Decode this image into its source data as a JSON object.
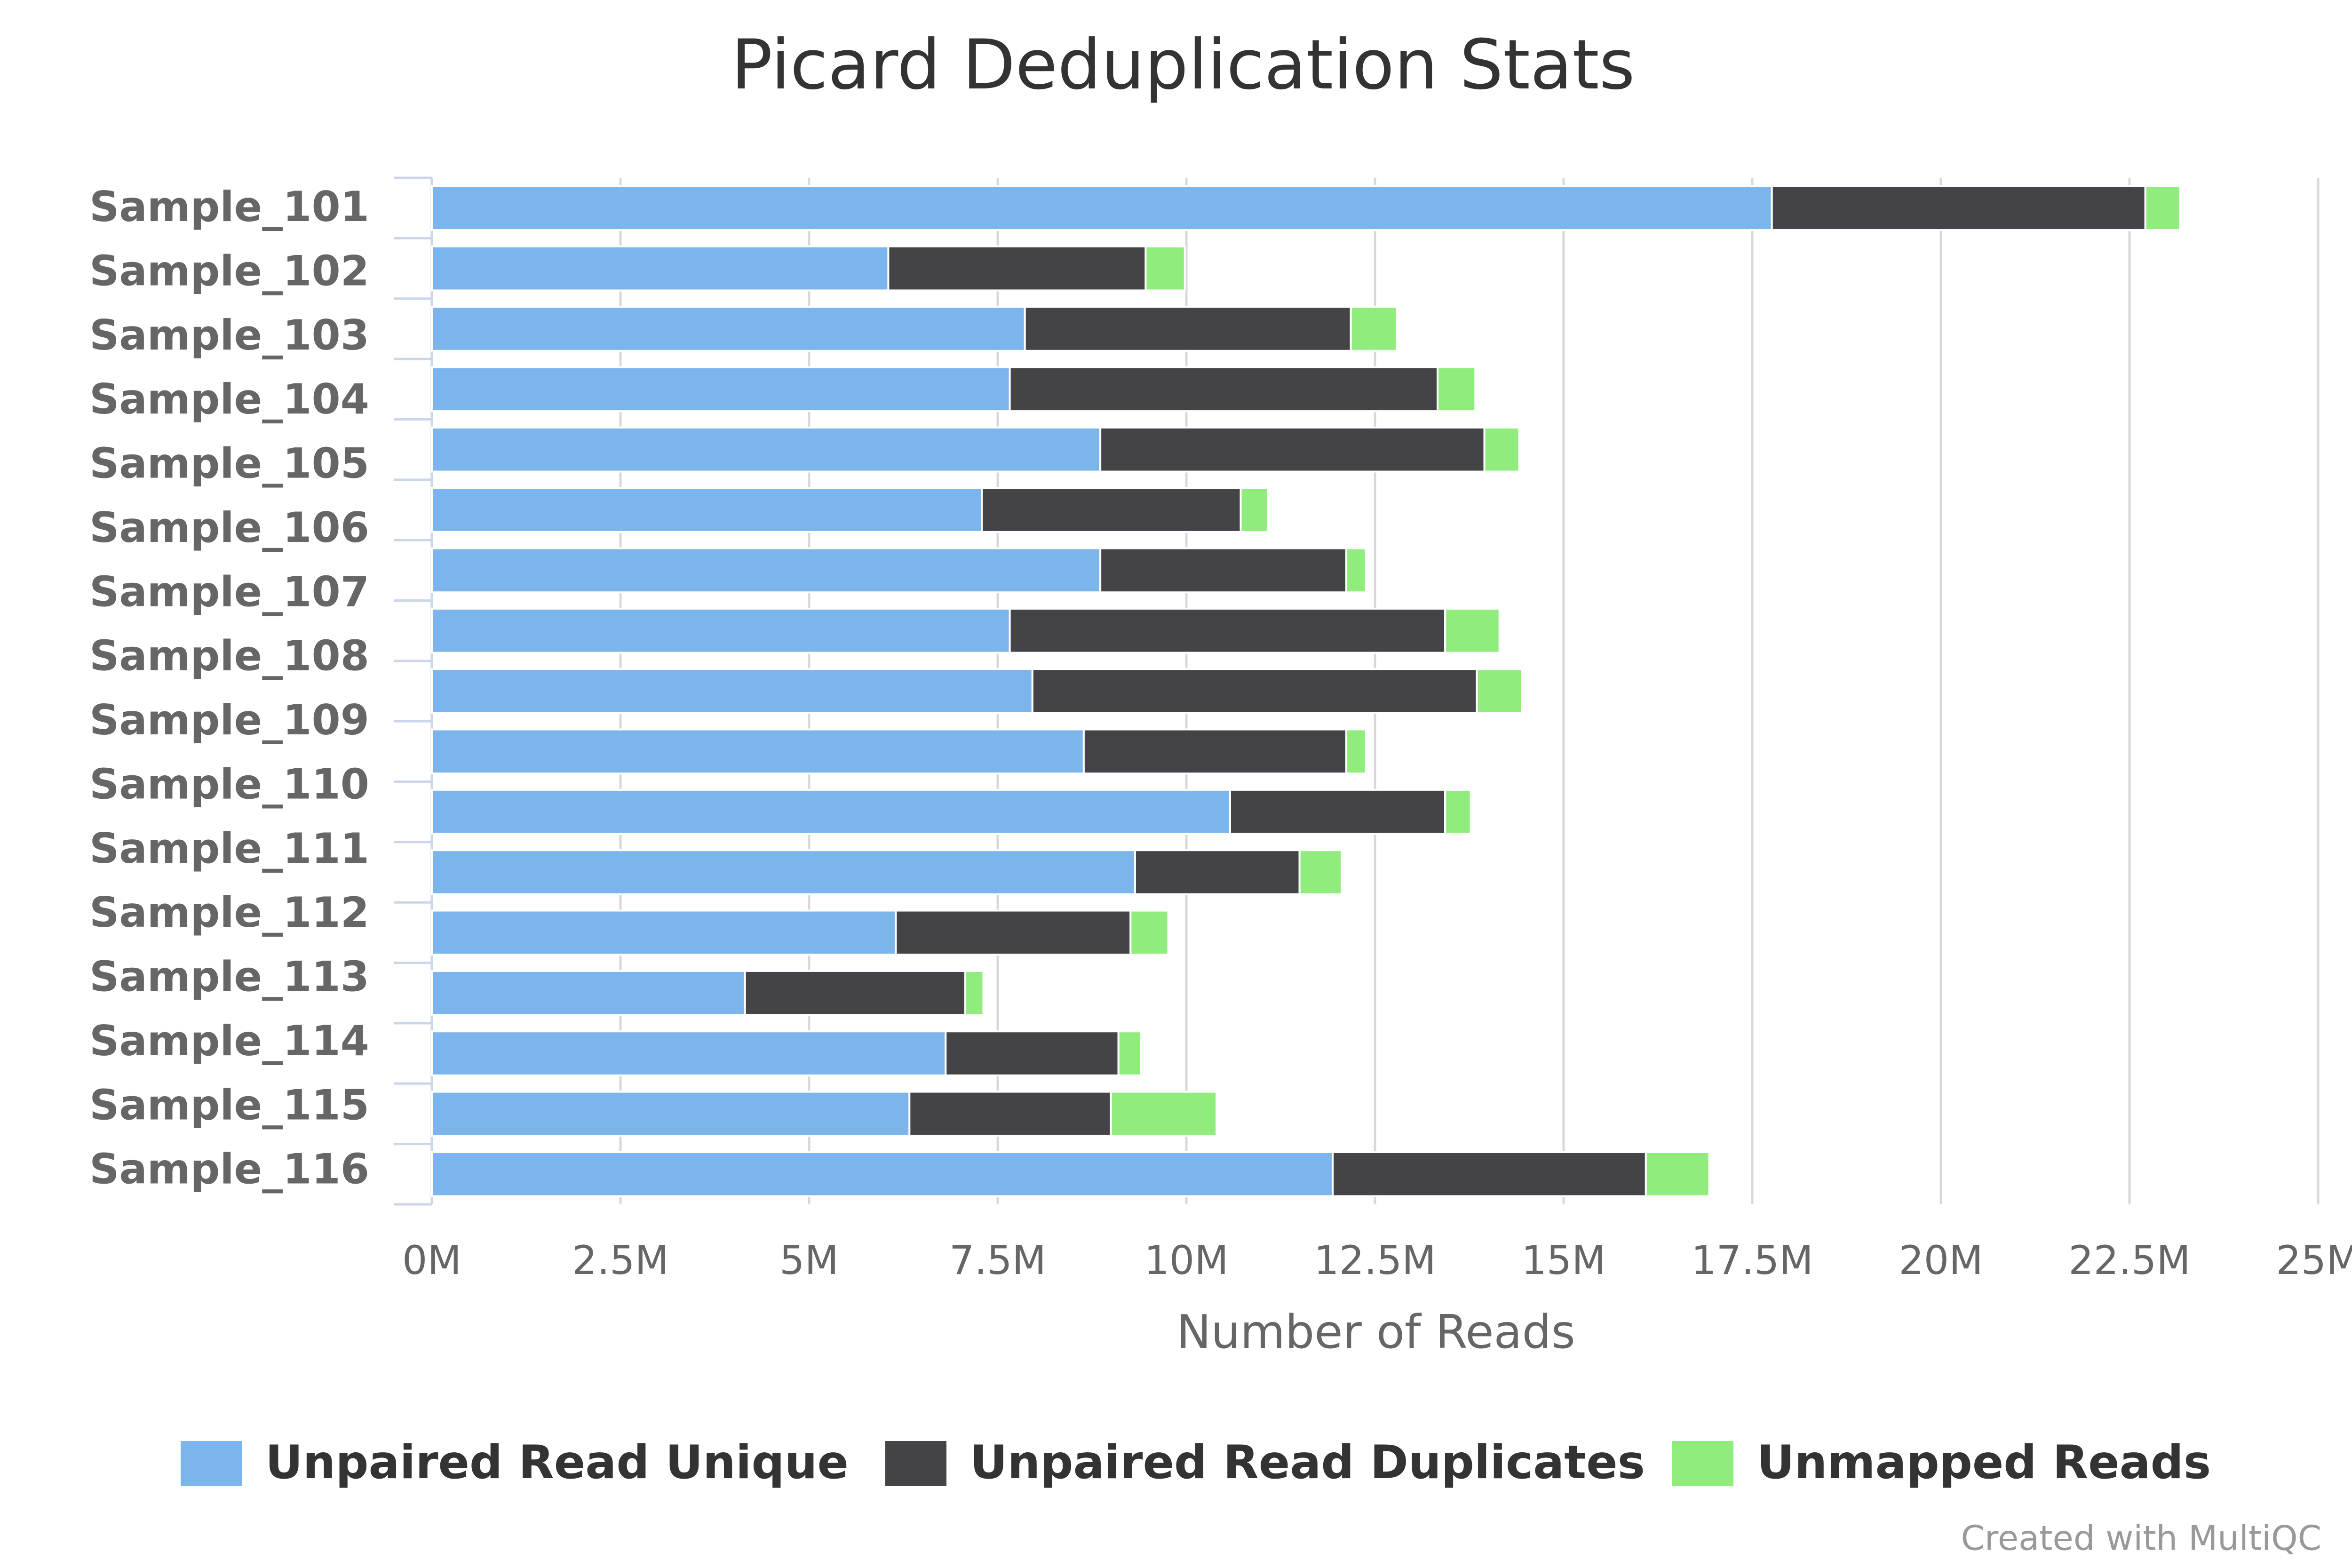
{
  "chart_data": {
    "type": "stacked_bar_horizontal",
    "title": "Picard Deduplication Stats",
    "categories": [
      "Sample_101",
      "Sample_102",
      "Sample_103",
      "Sample_104",
      "Sample_105",
      "Sample_106",
      "Sample_107",
      "Sample_108",
      "Sample_109",
      "Sample_110",
      "Sample_111",
      "Sample_112",
      "Sample_113",
      "Sample_114",
      "Sample_115",
      "Sample_116",
      null
    ],
    "series": [
      {
        "name": "Unpaired Read Unique",
        "color": "#7cb5ec",
        "values": [
          17760000,
          6050000,
          7860000,
          7660000,
          8860000,
          7290000,
          8860000,
          7660000,
          7960000,
          8640000,
          10580000,
          9320000,
          6150000,
          4150000,
          6810000,
          6330000,
          11940000
        ]
      },
      {
        "name": "Unpaired Read Duplicates",
        "color": "#434348",
        "values": [
          4950000,
          3410000,
          4320000,
          5670000,
          5090000,
          3430000,
          3260000,
          5770000,
          5890000,
          3480000,
          2850000,
          2180000,
          3110000,
          2920000,
          2290000,
          2670000,
          4150000
        ]
      },
      {
        "name": "Unmapped Reads",
        "color": "#90ed7d",
        "values": [
          460000,
          520000,
          610000,
          500000,
          460000,
          360000,
          260000,
          720000,
          600000,
          260000,
          340000,
          560000,
          500000,
          240000,
          300000,
          1400000,
          840000
        ]
      }
    ],
    "xlabel": "Number of Reads",
    "xlim": [
      0,
      25000000
    ],
    "xticks": [
      {
        "value": 0,
        "label": "0M"
      },
      {
        "value": 2500000,
        "label": "2.5M"
      },
      {
        "value": 5000000,
        "label": "5M"
      },
      {
        "value": 7500000,
        "label": "7.5M"
      },
      {
        "value": 10000000,
        "label": "10M"
      },
      {
        "value": 12500000,
        "label": "12.5M"
      },
      {
        "value": 15000000,
        "label": "15M"
      },
      {
        "value": 17500000,
        "label": "17.5M"
      },
      {
        "value": 20000000,
        "label": "20M"
      },
      {
        "value": 22500000,
        "label": "22.5M"
      },
      {
        "value": 25000000,
        "label": "25M"
      }
    ],
    "grid": true,
    "legend": "bottom",
    "credits": "Created with MultiQC"
  }
}
